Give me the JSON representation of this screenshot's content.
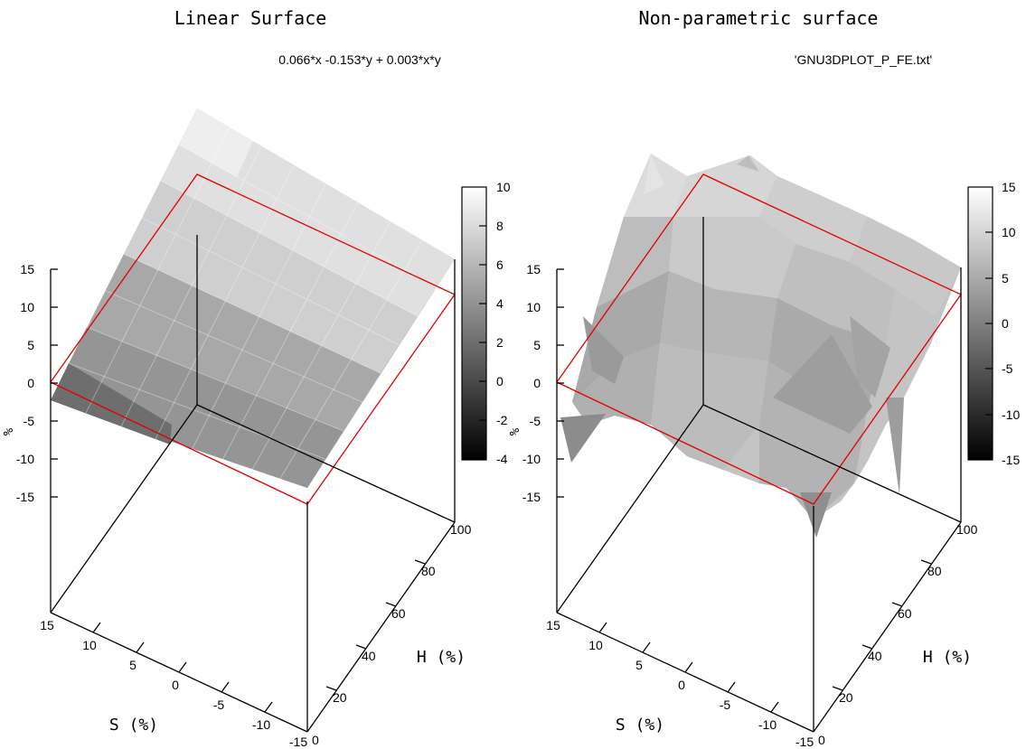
{
  "chart_data": [
    {
      "type": "surface",
      "title": "Linear Surface",
      "legend_entry": "0.066*x -0.153*y + 0.003*x*y",
      "xlabel": "S (%)",
      "ylabel": "H (%)",
      "zlabel": "%",
      "x_ticks": [
        "15",
        "10",
        "5",
        "0",
        "-5",
        "-10",
        "-15"
      ],
      "y_ticks": [
        "0",
        "20",
        "40",
        "60",
        "80",
        "100"
      ],
      "z_ticks": [
        "15",
        "10",
        "5",
        "0",
        "-5",
        "-10",
        "-15"
      ],
      "xlim": [
        -15,
        15
      ],
      "ylim": [
        0,
        100
      ],
      "zlim": [
        -15,
        15
      ],
      "colorbar": {
        "ticks": [
          "10",
          "8",
          "6",
          "4",
          "2",
          "0",
          "-2",
          "-4"
        ],
        "range": [
          -4,
          10
        ]
      },
      "z": [
        [
          -2.0,
          -1.0,
          0.0,
          1.0,
          2.0,
          3.0,
          4.0,
          5.0,
          6.0
        ],
        [
          -1.3,
          -0.1,
          1.2,
          2.4,
          3.6,
          4.8,
          6.0,
          7.2,
          8.4
        ],
        [
          -0.6,
          0.8,
          2.3,
          3.7,
          5.1,
          6.5,
          7.9,
          9.4,
          10.2
        ]
      ]
    },
    {
      "type": "surface",
      "title": "Non-parametric surface",
      "legend_entry": "'GNU3DPLOT_P_FE.txt'",
      "xlabel": "S (%)",
      "ylabel": "H (%)",
      "zlabel": "%",
      "x_ticks": [
        "15",
        "10",
        "5",
        "0",
        "-5",
        "-10",
        "-15"
      ],
      "y_ticks": [
        "0",
        "20",
        "40",
        "60",
        "80",
        "100"
      ],
      "z_ticks": [
        "15",
        "10",
        "5",
        "0",
        "-5",
        "-10",
        "-15"
      ],
      "xlim": [
        -15,
        15
      ],
      "ylim": [
        0,
        100
      ],
      "zlim": [
        -15,
        15
      ],
      "colorbar": {
        "ticks": [
          "15",
          "10",
          "5",
          "0",
          "-5",
          "-10",
          "-15"
        ],
        "range": [
          -15,
          15
        ]
      }
    }
  ]
}
